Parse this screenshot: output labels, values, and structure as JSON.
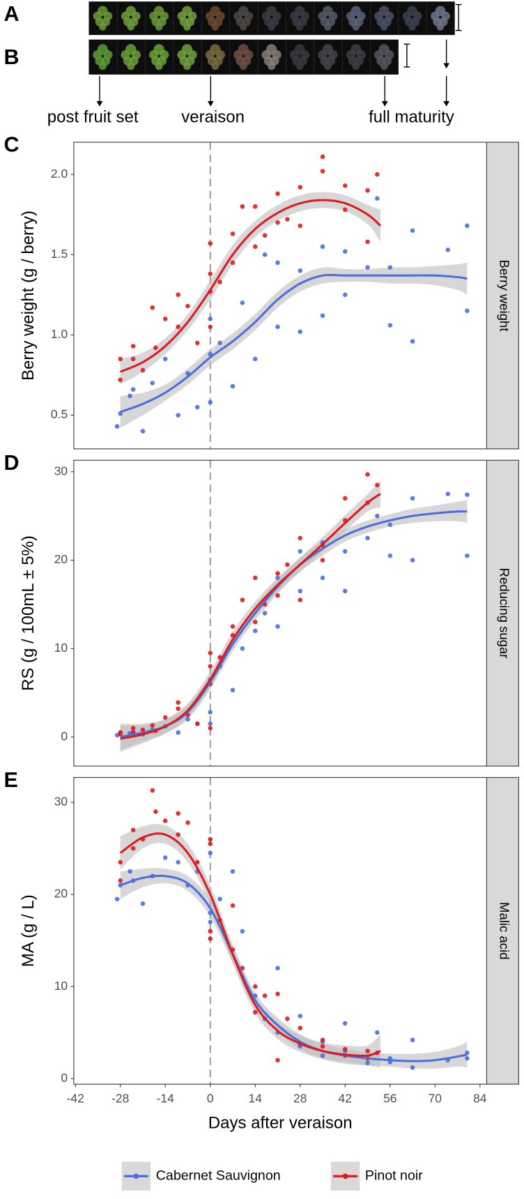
{
  "figure": {
    "panels": [
      "A",
      "B"
    ],
    "stages": [
      "post fruit set",
      "veraison",
      "full maturity"
    ]
  },
  "chart_data": [
    {
      "type": "line",
      "label": "C",
      "y_label": "Berry weight (g / berry)",
      "strip": "Berry weight",
      "xlim": [
        -42.5,
        86.1
      ],
      "ylim": [
        0.29,
        2.2
      ],
      "yticks": [
        0.5,
        {
          "value": 1,
          "label": "1.0"
        },
        1.5,
        {
          "value": 2,
          "label": "2.0"
        }
      ],
      "vline": 0,
      "grid": false,
      "series": [
        {
          "color": "#4a6fdc",
          "x": [
            -28,
            -21,
            -14,
            -7,
            0,
            7,
            14,
            21,
            28,
            35,
            42,
            49,
            56,
            63,
            70,
            77,
            80
          ],
          "values": [
            0.52,
            0.57,
            0.64,
            0.74,
            0.86,
            0.96,
            1.08,
            1.22,
            1.32,
            1.37,
            1.37,
            1.37,
            1.37,
            1.37,
            1.37,
            1.36,
            1.35
          ],
          "ci": [
            0.1,
            0.07,
            0.05,
            0.05,
            0.05,
            0.05,
            0.05,
            0.05,
            0.05,
            0.05,
            0.04,
            0.04,
            0.05,
            0.05,
            0.06,
            0.08,
            0.1
          ],
          "points": {
            "x": [
              -29,
              -28,
              -25,
              -24,
              -21,
              -18,
              -14,
              -10,
              -7,
              -4,
              0,
              0,
              0,
              3,
              7,
              10,
              14,
              17,
              21,
              21,
              28,
              28,
              35,
              35,
              42,
              42,
              49,
              52,
              56,
              56,
              63,
              63,
              74,
              80,
              80
            ],
            "y": [
              0.43,
              0.51,
              0.62,
              0.66,
              0.4,
              0.7,
              0.85,
              0.5,
              0.76,
              0.55,
              0.58,
              1.1,
              0.88,
              0.95,
              0.68,
              1.2,
              0.85,
              1.5,
              1.05,
              1.45,
              1.02,
              1.4,
              1.12,
              1.55,
              1.25,
              1.52,
              1.42,
              1.85,
              1.06,
              1.42,
              0.96,
              1.65,
              1.53,
              1.15,
              1.68
            ]
          }
        },
        {
          "color": "#e0191c",
          "x": [
            -28,
            -21,
            -14,
            -7,
            0,
            7,
            14,
            21,
            28,
            35,
            42,
            49,
            53
          ],
          "values": [
            0.77,
            0.83,
            0.93,
            1.08,
            1.28,
            1.5,
            1.66,
            1.76,
            1.82,
            1.84,
            1.82,
            1.75,
            1.68
          ],
          "ci": [
            0.08,
            0.06,
            0.05,
            0.05,
            0.06,
            0.06,
            0.05,
            0.05,
            0.05,
            0.05,
            0.05,
            0.06,
            0.1
          ],
          "points": {
            "x": [
              -28,
              -28,
              -24,
              -24,
              -21,
              -18,
              -17,
              -14,
              -10,
              -10,
              -7,
              -4,
              0,
              0,
              0,
              0,
              3,
              7,
              7,
              10,
              14,
              14,
              17,
              21,
              21,
              24,
              28,
              28,
              35,
              35,
              42,
              42,
              49,
              49,
              52
            ],
            "y": [
              0.72,
              0.85,
              0.93,
              0.85,
              0.78,
              1.17,
              0.92,
              1.1,
              1.25,
              1.05,
              1.18,
              0.95,
              1.57,
              1.27,
              1.05,
              1.38,
              1.33,
              1.63,
              1.45,
              1.8,
              1.55,
              1.8,
              1.62,
              1.88,
              1.7,
              1.72,
              1.92,
              1.68,
              2.11,
              2.02,
              1.93,
              1.78,
              1.9,
              1.58,
              2.0
            ]
          }
        }
      ]
    },
    {
      "type": "line",
      "label": "D",
      "y_label": "RS (g / 100mL ± 5%)",
      "strip": "Reducing sugar",
      "xlim": [
        -42.5,
        86.1
      ],
      "ylim": [
        -3.3,
        31.3
      ],
      "yticks": [
        0,
        10,
        20,
        30
      ],
      "vline": 0,
      "grid": false,
      "series": [
        {
          "color": "#4a6fdc",
          "x": [
            -28,
            -21,
            -14,
            -7,
            0,
            7,
            14,
            21,
            28,
            35,
            42,
            49,
            56,
            63,
            70,
            77,
            80
          ],
          "values": [
            0,
            0.5,
            1.2,
            2.8,
            6.2,
            10.5,
            14,
            17,
            19.5,
            21.3,
            22.8,
            23.8,
            24.5,
            25,
            25.3,
            25.5,
            25.5
          ],
          "ci": [
            1.5,
            1,
            0.8,
            0.8,
            0.8,
            0.8,
            0.8,
            0.8,
            0.8,
            0.8,
            0.7,
            0.7,
            0.7,
            0.8,
            0.9,
            1.1,
            1.3
          ],
          "points": {
            "x": [
              -29,
              -28,
              -25,
              -24,
              -21,
              -18,
              -14,
              -10,
              -7,
              -4,
              0,
              0,
              0,
              3,
              7,
              10,
              14,
              17,
              21,
              21,
              28,
              28,
              35,
              35,
              42,
              42,
              49,
              52,
              56,
              56,
              63,
              63,
              74,
              80,
              80
            ],
            "y": [
              0.2,
              0.5,
              0.4,
              0.6,
              0.3,
              0.8,
              1.2,
              0.5,
              2.0,
              1.5,
              1.5,
              2.8,
              6.5,
              8,
              5.3,
              10,
              12,
              14,
              12.5,
              18,
              16.5,
              21,
              18,
              22,
              16.5,
              21,
              22.5,
              25,
              20.5,
              24,
              20,
              27,
              27.5,
              20.5,
              27.4
            ]
          }
        },
        {
          "color": "#e0191c",
          "x": [
            -28,
            -21,
            -14,
            -7,
            0,
            7,
            14,
            21,
            28,
            35,
            42,
            49,
            53
          ],
          "values": [
            -0.2,
            0.3,
            1.2,
            3,
            6.5,
            11,
            14.5,
            17.2,
            19.5,
            21.8,
            24.2,
            26.5,
            27.5
          ],
          "ci": [
            1.5,
            1,
            0.8,
            0.8,
            0.9,
            0.9,
            0.8,
            0.8,
            0.8,
            0.8,
            0.9,
            1,
            1.5
          ],
          "points": {
            "x": [
              -28,
              -28,
              -24,
              -24,
              -21,
              -18,
              -17,
              -14,
              -10,
              -10,
              -7,
              -4,
              0,
              0,
              0,
              0,
              3,
              7,
              7,
              10,
              14,
              14,
              17,
              21,
              21,
              24,
              28,
              28,
              35,
              35,
              42,
              42,
              49,
              49,
              52
            ],
            "y": [
              0.5,
              0.3,
              0.5,
              1.0,
              0.8,
              1.3,
              0.7,
              2.2,
              3.9,
              3.2,
              2.5,
              1.5,
              9.5,
              6.0,
              1.0,
              8.0,
              9.0,
              12.5,
              11.5,
              15.5,
              13,
              18,
              15,
              18.5,
              16,
              19.5,
              22.5,
              15.5,
              21.7,
              20,
              27,
              24.5,
              29.7,
              26.5,
              28.5
            ]
          }
        }
      ]
    },
    {
      "type": "line",
      "label": "E",
      "y_label": "MA (g / L)",
      "strip": "Malic acid",
      "x_label": "Days after veraison",
      "xlim": [
        -42.5,
        86.1
      ],
      "xticks": [
        -42,
        -28,
        -14,
        0,
        14,
        28,
        42,
        56,
        70,
        84
      ],
      "ylim": [
        -0.6,
        32.7
      ],
      "yticks": [
        0,
        10,
        20,
        30
      ],
      "vline": 0,
      "grid": false,
      "series": [
        {
          "name": "Cabernet Sauvignon",
          "color": "#4a6fdc",
          "x": [
            -28,
            -21,
            -14,
            -7,
            0,
            7,
            14,
            21,
            28,
            35,
            42,
            49,
            56,
            63,
            70,
            77,
            80
          ],
          "values": [
            21,
            21.8,
            22,
            21.2,
            18.5,
            13.5,
            8.5,
            5.8,
            4,
            3,
            2.5,
            2.2,
            2,
            1.9,
            2,
            2.4,
            2.6
          ],
          "ci": [
            1.5,
            1,
            0.8,
            0.8,
            0.9,
            0.9,
            0.8,
            0.8,
            0.8,
            0.8,
            0.7,
            0.7,
            0.7,
            0.8,
            0.9,
            1.1,
            1.4
          ],
          "points": {
            "x": [
              -29,
              -28,
              -25,
              -24,
              -21,
              -18,
              -14,
              -10,
              -7,
              -4,
              0,
              0,
              0,
              3,
              7,
              10,
              14,
              17,
              21,
              21,
              28,
              28,
              35,
              35,
              42,
              42,
              49,
              52,
              56,
              56,
              63,
              63,
              74,
              80,
              80
            ],
            "y": [
              19.5,
              21,
              22.5,
              21.5,
              19,
              22,
              24,
              23.5,
              21,
              22.5,
              24.5,
              18,
              17,
              19.5,
              22.5,
              16,
              9,
              6.5,
              12,
              5,
              6.8,
              3.5,
              4,
              2.5,
              6,
              3,
              1.7,
              5,
              1.8,
              2.2,
              4.2,
              1.2,
              2,
              2.8,
              2.2
            ]
          }
        },
        {
          "name": "Pinot noir",
          "color": "#e0191c",
          "x": [
            -28,
            -21,
            -14,
            -7,
            0,
            7,
            14,
            21,
            28,
            35,
            42,
            49,
            53
          ],
          "values": [
            24.5,
            26.2,
            26.5,
            24.5,
            20,
            13.5,
            8,
            5.2,
            3.8,
            3,
            2.6,
            2.5,
            3
          ],
          "ci": [
            1.8,
            1.2,
            1,
            1,
            1,
            1,
            0.9,
            0.9,
            0.9,
            0.9,
            1,
            1.1,
            1.8
          ],
          "points": {
            "x": [
              -28,
              -28,
              -24,
              -24,
              -21,
              -18,
              -17,
              -14,
              -10,
              -10,
              -7,
              -4,
              0,
              0,
              0,
              0,
              3,
              7,
              7,
              10,
              14,
              14,
              17,
              21,
              21,
              24,
              28,
              28,
              35,
              35,
              42,
              42,
              49,
              49,
              52
            ],
            "y": [
              23.5,
              21.5,
              27,
              25,
              26,
              31.3,
              29,
              28,
              28.8,
              26.5,
              27.8,
              23.5,
              26,
              16,
              15.2,
              25.5,
              17.2,
              18.8,
              14,
              12,
              7.2,
              10,
              9,
              9.2,
              2,
              6.5,
              5.5,
              3.8,
              4.2,
              3.5,
              3.2,
              2.5,
              3,
              2.2,
              2.8
            ]
          }
        }
      ]
    }
  ]
}
